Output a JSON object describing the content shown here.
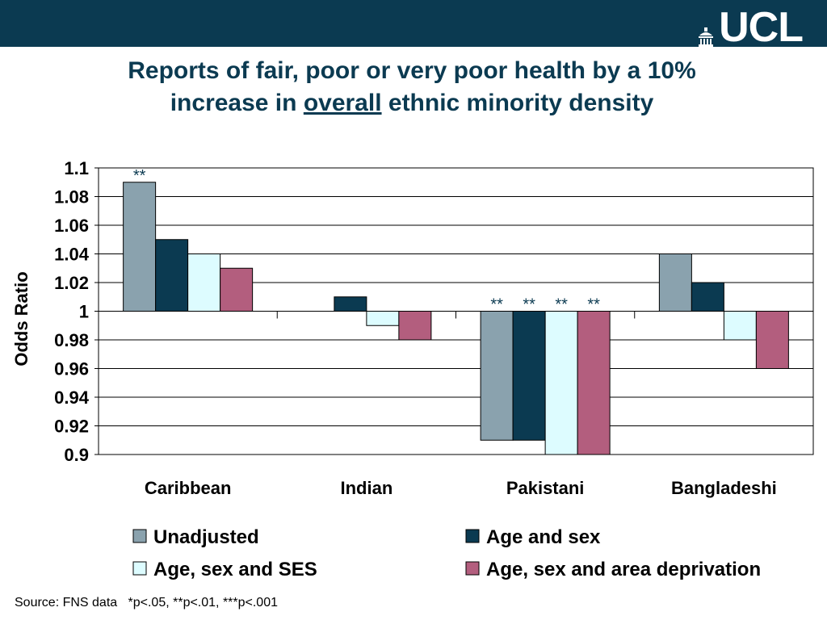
{
  "brand": {
    "logo_text": "UCL"
  },
  "title": {
    "before": "Reports of fair, poor or very poor health by a 10%",
    "line2_before": "increase in ",
    "underlined": "overall",
    "line2_after": " ethnic minority density"
  },
  "footnote": "Source: FNS data   *p<.05, **p<.01, ***p<.001",
  "colors": {
    "header": "#0b3a51",
    "title": "#0b3a51"
  },
  "chart_data": {
    "type": "bar",
    "title": "",
    "ylabel": "Odds Ratio",
    "xlabel": "",
    "ylim": [
      0.9,
      1.1
    ],
    "baseline": 1,
    "yticks": [
      "1.1",
      "1.08",
      "1.06",
      "1.04",
      "1.02",
      "1",
      "0.98",
      "0.96",
      "0.94",
      "0.92",
      "0.9"
    ],
    "grid": true,
    "legend_position": "bottom",
    "categories": [
      "Caribbean",
      "Indian",
      "Pakistani",
      "Bangladeshi"
    ],
    "series": [
      {
        "name": "Unadjusted",
        "color": "#8aa2ae",
        "values": [
          1.09,
          1.0,
          0.91,
          1.04
        ],
        "annotations": [
          "**",
          "",
          "**",
          ""
        ]
      },
      {
        "name": "Age and sex",
        "color": "#0b3a51",
        "values": [
          1.05,
          1.01,
          0.91,
          1.02
        ],
        "annotations": [
          "",
          "",
          "**",
          ""
        ]
      },
      {
        "name": "Age, sex and SES",
        "color": "#ddfcff",
        "values": [
          1.04,
          0.99,
          0.9,
          0.98
        ],
        "annotations": [
          "",
          "",
          "**",
          ""
        ]
      },
      {
        "name": "Age, sex and area deprivation",
        "color": "#b35e7e",
        "values": [
          1.03,
          0.98,
          0.9,
          0.96
        ],
        "annotations": [
          "",
          "",
          "**",
          ""
        ]
      }
    ]
  }
}
